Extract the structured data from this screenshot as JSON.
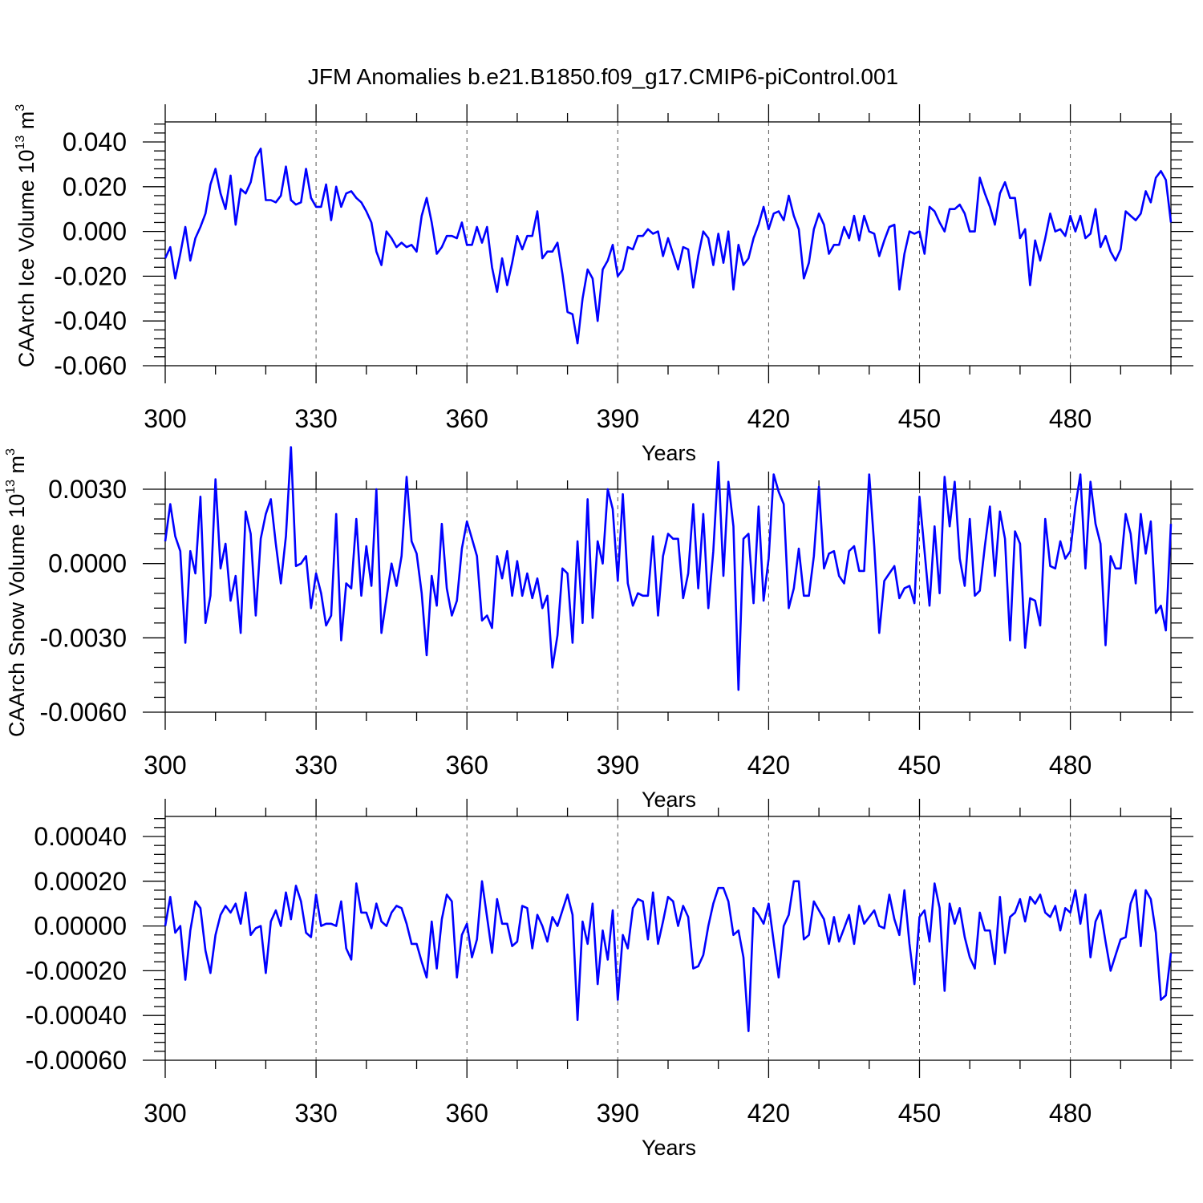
{
  "title": "JFM Anomalies b.e21.B1850.f09_g17.CMIP6-piControl.001",
  "colors": {
    "series": "#0000ff",
    "axis": "#000000"
  },
  "chart_data": [
    {
      "type": "line",
      "ylabel": "CAArch Ice Volume 10",
      "ylabel_exp": "13",
      "ylabel_unit": " m",
      "ylabel_unit_exp": "3",
      "xlabel": "Years",
      "xlim": [
        300,
        500
      ],
      "ylim": [
        -0.06,
        0.045
      ],
      "xticks": [
        300,
        330,
        360,
        390,
        420,
        450,
        480
      ],
      "xtick_labels": [
        "300",
        "330",
        "360",
        "390",
        "420",
        "450",
        "480"
      ],
      "yticks": [
        -0.06,
        -0.04,
        -0.02,
        0.0,
        0.02,
        0.04
      ],
      "ytick_labels": [
        "-0.060",
        "-0.040",
        "-0.020",
        "0.000",
        "0.020",
        "0.040"
      ],
      "grid": "x-dashed",
      "x_start": 300,
      "values": [
        -0.012,
        -0.007,
        -0.021,
        -0.01,
        0.002,
        -0.013,
        -0.003,
        0.002,
        0.008,
        0.021,
        0.028,
        0.017,
        0.01,
        0.025,
        0.003,
        0.019,
        0.017,
        0.022,
        0.033,
        0.037,
        0.014,
        0.014,
        0.013,
        0.016,
        0.029,
        0.014,
        0.012,
        0.013,
        0.028,
        0.015,
        0.011,
        0.011,
        0.021,
        0.005,
        0.02,
        0.011,
        0.017,
        0.018,
        0.015,
        0.013,
        0.009,
        0.004,
        -0.009,
        -0.015,
        0.0,
        -0.003,
        -0.007,
        -0.005,
        -0.007,
        -0.006,
        -0.009,
        0.007,
        0.015,
        0.004,
        -0.01,
        -0.007,
        -0.002,
        -0.002,
        -0.003,
        0.004,
        -0.006,
        -0.006,
        0.002,
        -0.005,
        0.002,
        -0.016,
        -0.027,
        -0.012,
        -0.024,
        -0.014,
        -0.002,
        -0.008,
        -0.002,
        -0.002,
        0.009,
        -0.012,
        -0.009,
        -0.009,
        -0.005,
        -0.019,
        -0.036,
        -0.037,
        -0.05,
        -0.03,
        -0.017,
        -0.021,
        -0.04,
        -0.017,
        -0.013,
        -0.006,
        -0.02,
        -0.017,
        -0.007,
        -0.008,
        -0.002,
        -0.002,
        0.001,
        -0.001,
        0.0,
        -0.011,
        -0.003,
        -0.01,
        -0.017,
        -0.007,
        -0.008,
        -0.025,
        -0.011,
        0.0,
        -0.003,
        -0.015,
        -0.001,
        -0.014,
        0.0,
        -0.026,
        -0.006,
        -0.015,
        -0.012,
        -0.003,
        0.003,
        0.011,
        0.001,
        0.008,
        0.009,
        0.005,
        0.016,
        0.007,
        0.001,
        -0.021,
        -0.014,
        0.001,
        0.008,
        0.003,
        -0.01,
        -0.006,
        -0.006,
        0.002,
        -0.003,
        0.007,
        -0.004,
        0.007,
        0.0,
        -0.001,
        -0.011,
        -0.004,
        0.002,
        0.003,
        -0.026,
        -0.01,
        0.0,
        -0.001,
        0.0,
        -0.01,
        0.011,
        0.009,
        0.004,
        0.0,
        0.01,
        0.01,
        0.012,
        0.008,
        0.0,
        0.0,
        0.024,
        0.017,
        0.011,
        0.003,
        0.017,
        0.022,
        0.015,
        0.015,
        -0.003,
        0.001,
        -0.024,
        -0.004,
        -0.013,
        -0.003,
        0.008,
        0.0,
        0.001,
        -0.002,
        0.007,
        0.0,
        0.007,
        -0.003,
        -0.001,
        0.01,
        -0.007,
        -0.002,
        -0.009,
        -0.013,
        -0.008,
        0.009,
        0.007,
        0.005,
        0.008,
        0.018,
        0.013,
        0.024,
        0.027,
        0.023,
        0.004
      ]
    },
    {
      "type": "line",
      "ylabel": "CAArch Snow Volume 10",
      "ylabel_exp": "13",
      "ylabel_unit": " m",
      "ylabel_unit_exp": "3",
      "xlabel": "Years",
      "xlim": [
        300,
        500
      ],
      "ylim": [
        -0.006,
        0.0061
      ],
      "xticks": [
        300,
        330,
        360,
        390,
        420,
        450,
        480
      ],
      "xtick_labels": [
        "300",
        "330",
        "360",
        "390",
        "420",
        "450",
        "480"
      ],
      "yticks": [
        -0.006,
        -0.003,
        0.0,
        0.003
      ],
      "ytick_labels": [
        "-0.0060",
        "-0.0030",
        "0.0000",
        "0.0030"
      ],
      "grid": "x-dashed",
      "x_start": 300,
      "values": [
        0.0009,
        0.0024,
        0.0011,
        0.0005,
        -0.0032,
        0.0005,
        -0.0004,
        0.0027,
        -0.0024,
        -0.0013,
        0.0034,
        -0.0002,
        0.0008,
        -0.0015,
        -0.0005,
        -0.0028,
        0.0021,
        0.0012,
        -0.0021,
        0.001,
        0.002,
        0.0026,
        0.0008,
        -0.0008,
        0.0011,
        0.0047,
        -0.0001,
        0.0,
        0.0003,
        -0.0018,
        -0.0004,
        -0.0012,
        -0.0025,
        -0.0021,
        0.002,
        -0.0031,
        -0.0008,
        -0.001,
        0.0018,
        -0.0013,
        0.0007,
        -0.0009,
        0.003,
        -0.0028,
        -0.0014,
        0.0,
        -0.0009,
        0.0003,
        0.0035,
        0.0009,
        0.0004,
        -0.0012,
        -0.0037,
        -0.0005,
        -0.0017,
        0.0016,
        -0.001,
        -0.0021,
        -0.0015,
        0.0006,
        0.0017,
        0.001,
        0.0003,
        -0.0023,
        -0.0021,
        -0.0026,
        0.0003,
        -0.0006,
        0.0005,
        -0.0013,
        0.0001,
        -0.0013,
        -0.0004,
        -0.0014,
        -0.0006,
        -0.0018,
        -0.0013,
        -0.0042,
        -0.0029,
        -0.0002,
        -0.0004,
        -0.0032,
        0.0009,
        -0.0024,
        0.0026,
        -0.0022,
        0.0009,
        0.0,
        0.003,
        0.0022,
        -0.0007,
        0.0028,
        -0.0008,
        -0.0017,
        -0.0012,
        -0.0013,
        -0.0013,
        0.0011,
        -0.0021,
        0.0003,
        0.0012,
        0.001,
        0.001,
        -0.0014,
        -0.0004,
        0.0024,
        -0.001,
        0.002,
        -0.0018,
        0.0005,
        0.0041,
        -0.0005,
        0.0033,
        0.0015,
        -0.0051,
        0.001,
        0.0012,
        -0.0016,
        0.0023,
        -0.0015,
        0.0002,
        0.0036,
        0.0029,
        0.0024,
        -0.0018,
        -0.001,
        0.0006,
        -0.0013,
        -0.0013,
        0.0003,
        0.0031,
        -0.0002,
        0.0004,
        0.0005,
        -0.0005,
        -0.0008,
        0.0005,
        0.0007,
        -0.0003,
        -0.0003,
        0.0036,
        0.0007,
        -0.0028,
        -0.0007,
        -0.0004,
        -0.0001,
        -0.0014,
        -0.001,
        -0.0009,
        -0.0016,
        0.0027,
        0.0005,
        -0.0017,
        0.0015,
        -0.0012,
        0.0035,
        0.0015,
        0.0033,
        0.0002,
        -0.0009,
        0.0018,
        -0.0013,
        -0.0011,
        0.0007,
        0.0023,
        -0.0005,
        0.0021,
        0.001,
        -0.0031,
        0.0013,
        0.0008,
        -0.0034,
        -0.0014,
        -0.0015,
        -0.0025,
        0.0018,
        -0.0001,
        -0.0002,
        0.0009,
        0.0002,
        0.0005,
        0.0023,
        0.0036,
        -0.0002,
        0.0033,
        0.0016,
        0.0008,
        -0.0033,
        0.0003,
        -0.0002,
        -0.0002,
        0.002,
        0.0012,
        -0.0008,
        0.002,
        0.0004,
        0.0017,
        -0.002,
        -0.0017,
        -0.0027,
        0.0016
      ]
    },
    {
      "type": "line",
      "ylabel": "",
      "ylabel_exp": "",
      "ylabel_unit": "",
      "ylabel_unit_exp": "",
      "xlabel": "Years",
      "xlim": [
        300,
        500
      ],
      "ylim": [
        -0.0006,
        0.0004
      ],
      "xticks": [
        300,
        330,
        360,
        390,
        420,
        450,
        480
      ],
      "xtick_labels": [
        "300",
        "330",
        "360",
        "390",
        "420",
        "450",
        "480"
      ],
      "yticks": [
        -0.0006,
        -0.0004,
        -0.0002,
        0.0,
        0.0002,
        0.0004
      ],
      "ytick_labels": [
        "-0.00060",
        "-0.00040",
        "-0.00020",
        "0.00000",
        "0.00020",
        "0.00040"
      ],
      "grid": "x-dashed",
      "x_start": 300,
      "values": [
        0.0,
        0.00013,
        -3e-05,
        0.0,
        -0.00024,
        -2e-05,
        0.00011,
        8e-05,
        -0.00011,
        -0.00021,
        -4e-05,
        5e-05,
        9e-05,
        6e-05,
        0.0001,
        1e-05,
        0.00015,
        -4e-05,
        -1e-05,
        0.0,
        -0.00021,
        2e-05,
        7e-05,
        0.0,
        0.00015,
        3e-05,
        0.00018,
        0.00011,
        -3e-05,
        -5e-05,
        0.00014,
        0.0,
        1e-05,
        1e-05,
        0.0,
        0.00011,
        -0.0001,
        -0.00015,
        0.00019,
        6e-05,
        6e-05,
        -1e-05,
        0.0001,
        2e-05,
        0.0,
        6e-05,
        9e-05,
        8e-05,
        1e-05,
        -8e-05,
        -8e-05,
        -0.00016,
        -0.00023,
        2e-05,
        -0.00019,
        3e-05,
        0.00014,
        0.00011,
        -0.00023,
        -4e-05,
        1e-05,
        -0.00014,
        -6e-05,
        0.0002,
        4e-05,
        -0.00012,
        0.00012,
        1e-05,
        1e-05,
        -9e-05,
        -7e-05,
        9e-05,
        8e-05,
        -0.0001,
        5e-05,
        0.0,
        -7e-05,
        4e-05,
        0.0,
        7e-05,
        0.00014,
        5e-05,
        -0.00042,
        2e-05,
        -8e-05,
        0.0001,
        -0.00026,
        -2e-05,
        -0.00015,
        7e-05,
        -0.00033,
        -4e-05,
        -0.0001,
        8e-05,
        0.00012,
        0.00011,
        -6e-05,
        0.00015,
        -8e-05,
        2e-05,
        0.00013,
        0.00011,
        0.0,
        9e-05,
        4e-05,
        -0.00019,
        -0.00018,
        -0.00013,
        0.0,
        0.0001,
        0.00017,
        0.00017,
        0.00011,
        -4e-05,
        -2e-05,
        -0.00014,
        -0.00047,
        8e-05,
        5e-05,
        1e-05,
        0.0001,
        -7e-05,
        -0.00023,
        0.0,
        5e-05,
        0.0002,
        0.0002,
        -6e-05,
        -4e-05,
        0.00011,
        7e-05,
        3e-05,
        -8e-05,
        4e-05,
        -7e-05,
        -1e-05,
        5e-05,
        -8e-05,
        9e-05,
        1e-05,
        4e-05,
        7e-05,
        0.0,
        -1e-05,
        0.00014,
        3e-05,
        -4e-05,
        0.00016,
        -8e-05,
        -0.00026,
        4e-05,
        7e-05,
        -7e-05,
        0.00019,
        8e-05,
        -0.00029,
        0.0001,
        1e-05,
        8e-05,
        -5e-05,
        -0.00014,
        -0.00019,
        6e-05,
        -2e-05,
        -2e-05,
        -0.00017,
        0.00013,
        -0.00012,
        4e-05,
        6e-05,
        0.00012,
        2e-05,
        0.00013,
        0.0001,
        0.00014,
        6e-05,
        4e-05,
        9e-05,
        -2e-05,
        8e-05,
        6e-05,
        0.00016,
        1e-05,
        0.00014,
        -0.00014,
        2e-05,
        7e-05,
        -7e-05,
        -0.0002,
        -0.00013,
        -6e-05,
        -5e-05,
        0.0001,
        0.00016,
        -9e-05,
        0.00016,
        0.00012,
        -3e-05,
        -0.00033,
        -0.00031,
        -0.00012
      ]
    }
  ]
}
